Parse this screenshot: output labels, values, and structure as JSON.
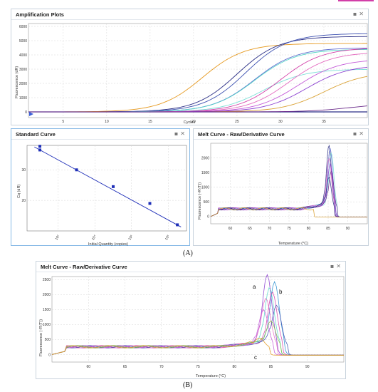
{
  "panelA": {
    "caption": "(A)",
    "amp": {
      "title": "Amplification Plots",
      "ylabel": "Fluorescence (dR)",
      "xlabel": "Cycles",
      "yticks": [
        "6000",
        "5000",
        "4000",
        "3000",
        "2000",
        "1000",
        "0"
      ],
      "xticks": [
        "5",
        "10",
        "15",
        "20",
        "25",
        "30",
        "35"
      ]
    },
    "std": {
      "title": "Standard Curve",
      "ylabel": "Cq (dR)",
      "xlabel": "Initial Quantity (copies)",
      "yticks": [
        "30",
        "20"
      ],
      "xticks": [
        "10²",
        "10⁴",
        "10⁶",
        "10⁸"
      ]
    },
    "melt": {
      "title": "Melt Curve - Raw/Derivative Curve",
      "ylabel": "Fluorescence (-R'(T))",
      "xlabel": "Temperature (°C)",
      "yticks": [
        "2000",
        "1500",
        "1000",
        "500",
        "0"
      ],
      "xticks": [
        "60",
        "65",
        "70",
        "75",
        "80",
        "85",
        "90"
      ]
    }
  },
  "panelB": {
    "caption": "(B)",
    "melt": {
      "title": "Melt Curve - Raw/Derivative Curve",
      "ylabel": "Fluorescence (-R'(T))",
      "xlabel": "Temperature (°C)",
      "yticks": [
        "2500",
        "2000",
        "1500",
        "1000",
        "500",
        "0"
      ],
      "xticks": [
        "60",
        "65",
        "70",
        "75",
        "80",
        "85",
        "90"
      ],
      "annotations": [
        "a",
        "b",
        "c"
      ]
    }
  },
  "buttons": {
    "minimize": "▪",
    "close": "✕"
  },
  "chart_data": [
    {
      "type": "line",
      "title": "Amplification Plots",
      "xlabel": "Cycles",
      "ylabel": "Fluorescence (dR)",
      "xlim": [
        1,
        40
      ],
      "ylim": [
        -400,
        6200
      ],
      "x_midpoints_approx": [
        21,
        25,
        26,
        27,
        27,
        28,
        30,
        31,
        32,
        33,
        35,
        38
      ],
      "plateaus_approx": [
        4800,
        5300,
        5500,
        4500,
        4400,
        3000,
        4500,
        4200,
        3700,
        3300,
        2800,
        600
      ]
    },
    {
      "type": "scatter",
      "title": "Standard Curve",
      "xlabel": "Initial Quantity (copies)",
      "ylabel": "Cq (dR)",
      "x_log10": [
        1,
        3,
        5,
        7,
        8.5
      ],
      "y": [
        36.5,
        30,
        24.5,
        19,
        12
      ]
    },
    {
      "type": "line",
      "title": "Melt Curve - Raw/Derivative Curve",
      "xlabel": "Temperature (°C)",
      "ylabel": "Fluorescence (-R'(T))",
      "xlim": [
        55,
        95
      ],
      "ylim": [
        -250,
        2500
      ],
      "peak_temperature_approx": 85.5,
      "peak_heights_approx": [
        2200,
        2100,
        1900,
        1700,
        1500,
        1300,
        1100
      ]
    },
    {
      "type": "line",
      "title": "Melt Curve - Raw/Derivative Curve",
      "xlabel": "Temperature (°C)",
      "ylabel": "Fluorescence (-R'(T))",
      "xlim": [
        55,
        95
      ],
      "ylim": [
        -250,
        2600
      ],
      "peaks": [
        {
          "label": "a",
          "temperature_approx": 84.5,
          "height_approx": 2400
        },
        {
          "label": "b",
          "temperature_approx": 85.5,
          "height_approx": 2200
        },
        {
          "label": "c",
          "temperature_approx": 84,
          "height_approx": 300
        }
      ]
    }
  ],
  "colors": {
    "panel_border": "#c9d3dd",
    "selected_border": "#86b9e6",
    "grid": "#d6d6d6",
    "std_line": "#1f2fb8",
    "series": [
      "#e69a22",
      "#2b2f86",
      "#3b4fb0",
      "#5d6ad0",
      "#56d6c8",
      "#7ee0d8",
      "#d23ea8",
      "#e46cc0",
      "#c45bd8",
      "#8a3ed0",
      "#d9a030",
      "#6a2a8a"
    ]
  }
}
